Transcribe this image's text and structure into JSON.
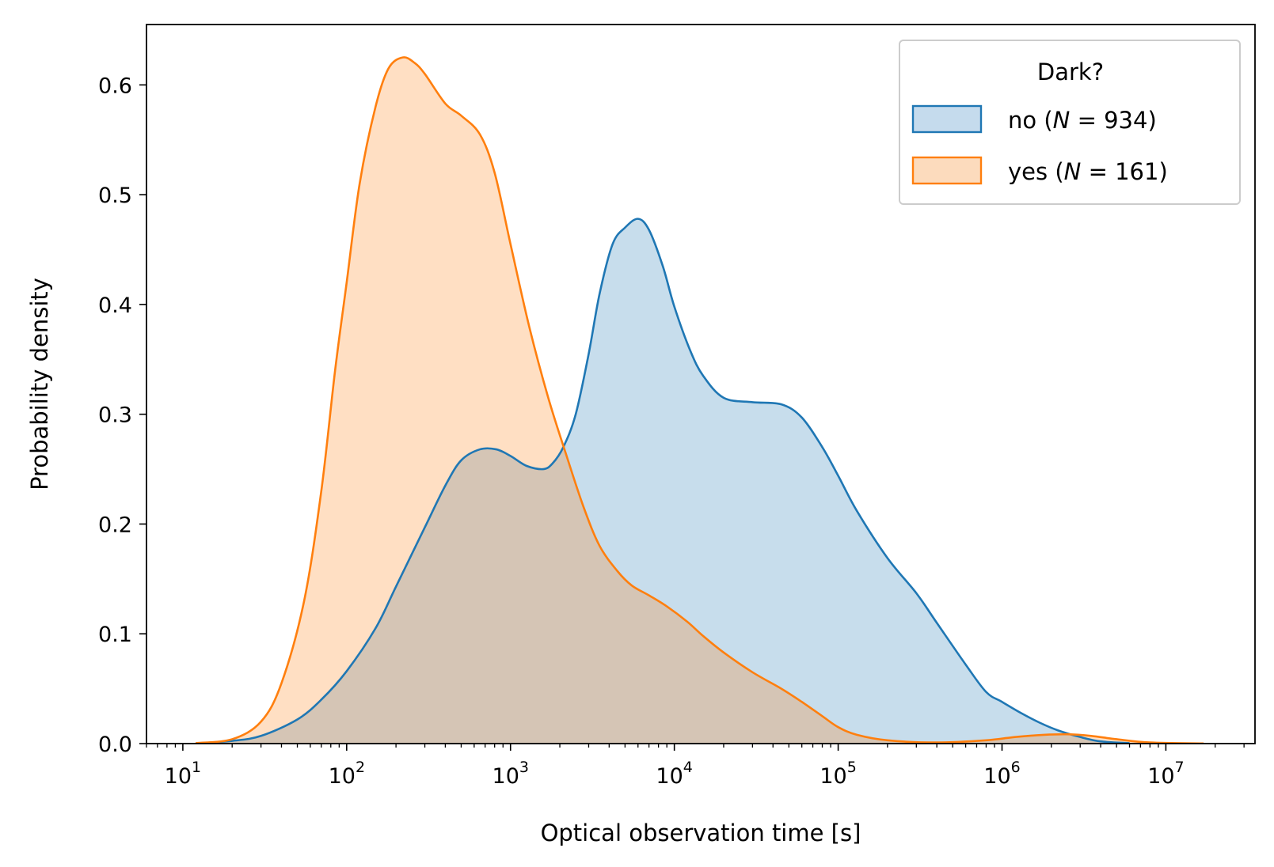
{
  "chart_data": {
    "type": "area",
    "xlabel": "Optical observation time [s]",
    "ylabel": "Probability density",
    "xscale": "log",
    "xlim": [
      6,
      35000000
    ],
    "ylim": [
      0,
      0.655
    ],
    "grid": false,
    "legend": {
      "title": "Dark?",
      "placement": "top-right",
      "entries": [
        "no (N = 934)",
        "yes (N = 161)"
      ]
    },
    "x_ticks": [
      {
        "value": 10,
        "base": "10",
        "exp": "1"
      },
      {
        "value": 100,
        "base": "10",
        "exp": "2"
      },
      {
        "value": 1000,
        "base": "10",
        "exp": "3"
      },
      {
        "value": 10000,
        "base": "10",
        "exp": "4"
      },
      {
        "value": 100000,
        "base": "10",
        "exp": "5"
      },
      {
        "value": 1000000,
        "base": "10",
        "exp": "6"
      },
      {
        "value": 10000000,
        "base": "10",
        "exp": "7"
      }
    ],
    "y_ticks": [
      {
        "value": 0.0,
        "label": "0.0"
      },
      {
        "value": 0.1,
        "label": "0.1"
      },
      {
        "value": 0.2,
        "label": "0.2"
      },
      {
        "value": 0.3,
        "label": "0.3"
      },
      {
        "value": 0.4,
        "label": "0.4"
      },
      {
        "value": 0.5,
        "label": "0.5"
      },
      {
        "value": 0.6,
        "label": "0.6"
      }
    ],
    "series": [
      {
        "name": "no",
        "n": 934,
        "color": "#1f77b4",
        "fill": "#c5dbed",
        "x": [
          12,
          20,
          30,
          50,
          70,
          100,
          150,
          200,
          300,
          400,
          500,
          650,
          820,
          1000,
          1250,
          1580,
          1800,
          2100,
          2500,
          3000,
          3500,
          4200,
          5000,
          6000,
          7000,
          8500,
          10000,
          12500,
          15000,
          20000,
          30000,
          45000,
          60000,
          80000,
          100000,
          130000,
          200000,
          300000,
          400000,
          600000,
          800000,
          1000000,
          1300000,
          1700000,
          2200000,
          3000000,
          4000000,
          6000000
        ],
        "y": [
          0.0003,
          0.0025,
          0.007,
          0.022,
          0.04,
          0.066,
          0.105,
          0.143,
          0.197,
          0.235,
          0.258,
          0.268,
          0.268,
          0.262,
          0.253,
          0.25,
          0.255,
          0.27,
          0.3,
          0.355,
          0.41,
          0.455,
          0.47,
          0.478,
          0.468,
          0.435,
          0.398,
          0.358,
          0.335,
          0.315,
          0.311,
          0.309,
          0.297,
          0.27,
          0.244,
          0.212,
          0.169,
          0.137,
          0.11,
          0.072,
          0.047,
          0.038,
          0.028,
          0.019,
          0.012,
          0.006,
          0.002,
          0.0004
        ]
      },
      {
        "name": "yes",
        "n": 161,
        "color": "#ff7f0e",
        "fill": "#fcdbbd",
        "x": [
          12,
          20,
          30,
          40,
          55,
          70,
          85,
          100,
          120,
          150,
          180,
          220,
          260,
          300,
          400,
          500,
          650,
          800,
          1000,
          1300,
          1700,
          2200,
          2800,
          3500,
          4500,
          5500,
          7000,
          9000,
          12000,
          15000,
          20000,
          30000,
          45000,
          60000,
          80000,
          100000,
          130000,
          200000,
          400000,
          800000,
          1200000,
          1800000,
          2500000,
          3500000,
          5000000,
          8000000,
          17000000
        ],
        "y": [
          0.0005,
          0.004,
          0.02,
          0.055,
          0.13,
          0.23,
          0.34,
          0.42,
          0.51,
          0.58,
          0.615,
          0.625,
          0.62,
          0.61,
          0.583,
          0.572,
          0.555,
          0.52,
          0.455,
          0.38,
          0.315,
          0.262,
          0.215,
          0.18,
          0.157,
          0.144,
          0.135,
          0.125,
          0.111,
          0.098,
          0.083,
          0.065,
          0.05,
          0.038,
          0.025,
          0.015,
          0.008,
          0.003,
          0.001,
          0.003,
          0.006,
          0.008,
          0.0085,
          0.007,
          0.004,
          0.001,
          0.0001
        ]
      }
    ]
  }
}
